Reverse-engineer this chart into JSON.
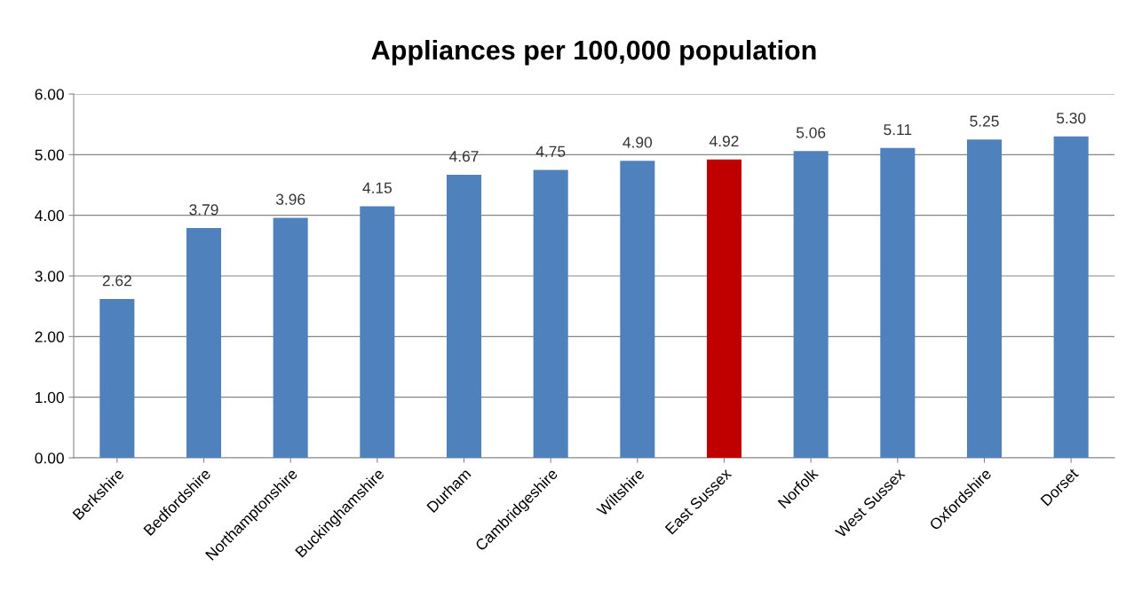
{
  "chart_data": {
    "type": "bar",
    "title": "Appliances per 100,000 population",
    "categories": [
      "Berkshire",
      "Bedfordshire",
      "Northamptonshire",
      "Buckinghamshire",
      "Durham",
      "Cambridgeshire",
      "Wiltshire",
      "East Sussex",
      "Norfolk",
      "West Sussex",
      "Oxfordshire",
      "Dorset"
    ],
    "values": [
      2.62,
      3.79,
      3.96,
      4.15,
      4.67,
      4.75,
      4.9,
      4.92,
      5.06,
      5.11,
      5.25,
      5.3
    ],
    "value_labels": [
      "2.62",
      "3.79",
      "3.96",
      "4.15",
      "4.67",
      "4.75",
      "4.90",
      "4.92",
      "5.06",
      "5.11",
      "5.25",
      "5.30"
    ],
    "colors": [
      "#4f81bd",
      "#4f81bd",
      "#4f81bd",
      "#4f81bd",
      "#4f81bd",
      "#4f81bd",
      "#4f81bd",
      "#c00000",
      "#4f81bd",
      "#4f81bd",
      "#4f81bd",
      "#4f81bd"
    ],
    "ylim": [
      0,
      6
    ],
    "yticks": [
      {
        "value": 0,
        "label": "0.00"
      },
      {
        "value": 1,
        "label": "1.00"
      },
      {
        "value": 2,
        "label": "2.00"
      },
      {
        "value": 3,
        "label": "3.00"
      },
      {
        "value": 4,
        "label": "4.00"
      },
      {
        "value": 5,
        "label": "5.00"
      },
      {
        "value": 6,
        "label": "6.00"
      }
    ],
    "grid": "y",
    "legend": false
  }
}
